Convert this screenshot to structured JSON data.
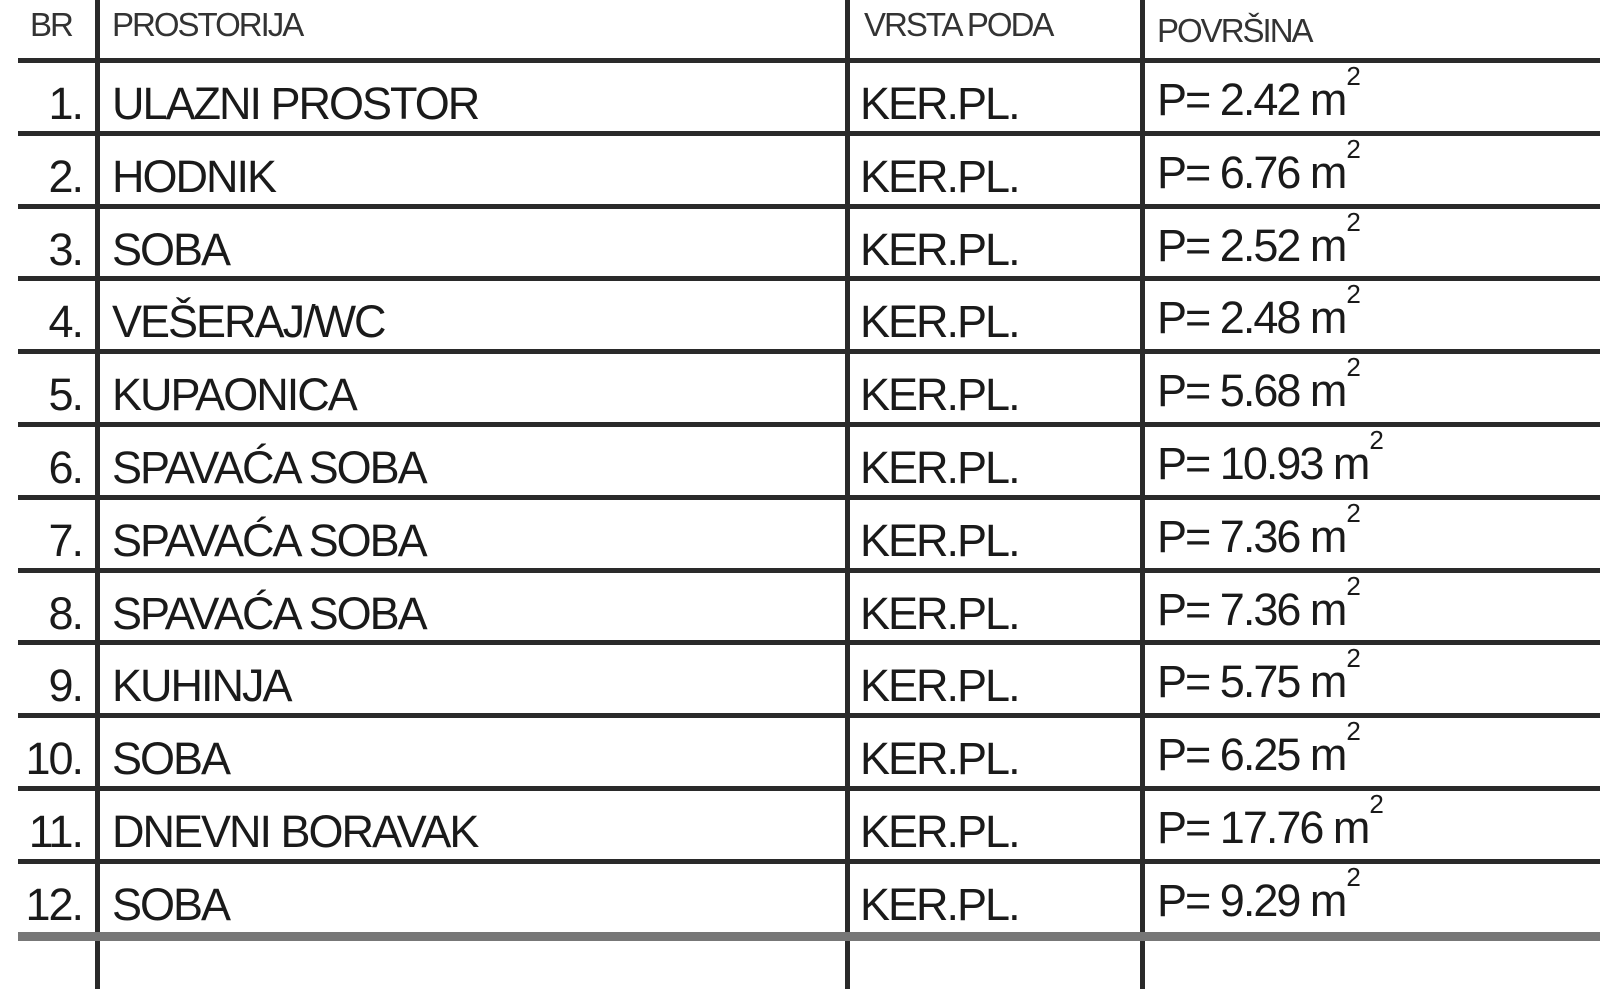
{
  "table": {
    "headers": [
      "BR",
      "PROSTORIJA",
      "VRSTA PODA",
      "POVRŠINA"
    ],
    "rows": [
      {
        "br": "1.",
        "room": "ULAZNI PROSTOR",
        "floor": "KER.PL.",
        "area": "P= 2.42 m",
        "unit_exp": "2"
      },
      {
        "br": "2.",
        "room": "HODNIK",
        "floor": "KER.PL.",
        "area": "P= 6.76 m",
        "unit_exp": "2"
      },
      {
        "br": "3.",
        "room": "SOBA",
        "floor": "KER.PL.",
        "area": "P= 2.52 m",
        "unit_exp": "2"
      },
      {
        "br": "4.",
        "room": "VEŠERAJ/WC",
        "floor": "KER.PL.",
        "area": "P= 2.48 m",
        "unit_exp": "2"
      },
      {
        "br": "5.",
        "room": "KUPAONICA",
        "floor": "KER.PL.",
        "area": "P= 5.68 m",
        "unit_exp": "2"
      },
      {
        "br": "6.",
        "room": "SPAVAĆA SOBA",
        "floor": "KER.PL.",
        "area": "P= 10.93 m",
        "unit_exp": "2"
      },
      {
        "br": "7.",
        "room": "SPAVAĆA SOBA",
        "floor": "KER.PL.",
        "area": "P= 7.36 m",
        "unit_exp": "2"
      },
      {
        "br": "8.",
        "room": "SPAVAĆA SOBA",
        "floor": "KER.PL.",
        "area": "P= 7.36 m",
        "unit_exp": "2"
      },
      {
        "br": "9.",
        "room": "KUHINJA",
        "floor": "KER.PL.",
        "area": "P= 5.75 m",
        "unit_exp": "2"
      },
      {
        "br": "10.",
        "room": "SOBA",
        "floor": "KER.PL.",
        "area": "P= 6.25 m",
        "unit_exp": "2"
      },
      {
        "br": "11.",
        "room": "DNEVNI BORAVAK",
        "floor": "KER.PL.",
        "area": "P= 17.76 m",
        "unit_exp": "2"
      },
      {
        "br": "12.",
        "room": "SOBA",
        "floor": "KER.PL.",
        "area": "P= 9.29 m",
        "unit_exp": "2"
      }
    ]
  }
}
